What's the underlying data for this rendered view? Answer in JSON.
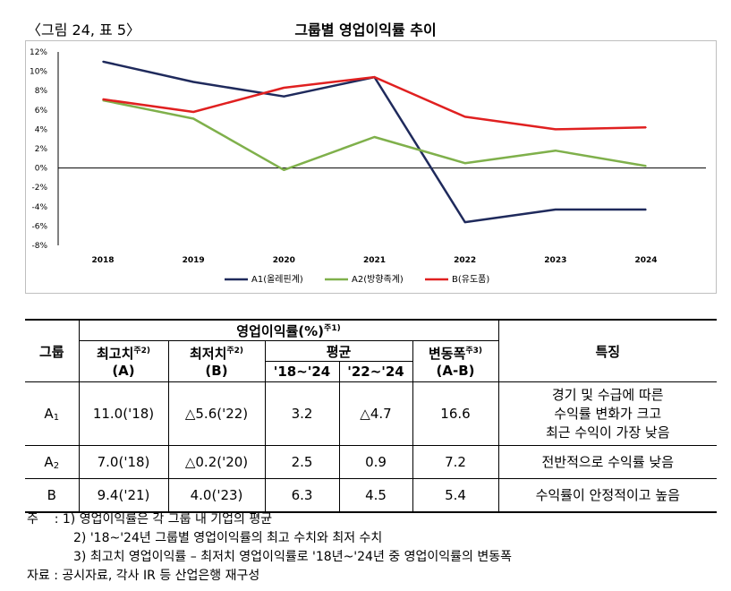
{
  "figure_label": "〈그림 24, 표 5〉",
  "chart_data": {
    "type": "line",
    "title": "그룹별 영업이익률 추이",
    "categories": [
      "2018",
      "2019",
      "2020",
      "2021",
      "2022",
      "2023",
      "2024"
    ],
    "y_ticks": [
      "12%",
      "10%",
      "8%",
      "6%",
      "4%",
      "2%",
      "0%",
      "-2%",
      "-4%",
      "-6%",
      "-8%"
    ],
    "ylim": [
      -8,
      12
    ],
    "grid": false,
    "legend_position": "bottom",
    "series": [
      {
        "name": "A1(올레핀계)",
        "color": "#1f2a5c",
        "values": [
          11.0,
          8.9,
          7.4,
          9.4,
          -5.6,
          -4.3,
          -4.3
        ]
      },
      {
        "name": "A2(방향족계)",
        "color": "#7fb04b",
        "values": [
          7.0,
          5.1,
          -0.2,
          3.2,
          0.5,
          1.8,
          0.2
        ]
      },
      {
        "name": "B(유도품)",
        "color": "#e02020",
        "values": [
          7.1,
          5.8,
          8.3,
          9.4,
          5.3,
          4.0,
          4.2
        ]
      }
    ]
  },
  "table": {
    "header": {
      "group": "그룹",
      "margin_title": "영업이익률(%)",
      "margin_note": "주1)",
      "max_label": "최고치",
      "max_note": "주2)",
      "max_sub": "(A)",
      "min_label": "최저치",
      "min_note": "주2)",
      "min_sub": "(B)",
      "avg_label": "평균",
      "avg_1": "'18~'24",
      "avg_2": "'22~'24",
      "range_label": "변동폭",
      "range_note": "주3)",
      "range_sub": "(A-B)",
      "feature": "특징"
    },
    "rows": [
      {
        "group": "A",
        "group_sub": "1",
        "max": "11.0('18)",
        "min": "△5.6('22)",
        "avg1": "3.2",
        "avg2": "△4.7",
        "range": "16.6",
        "feature_lines": [
          "경기 및 수급에 따른",
          "수익률 변화가 크고",
          "최근 수익이 가장 낮음"
        ]
      },
      {
        "group": "A",
        "group_sub": "2",
        "max": "7.0('18)",
        "min": "△0.2('20)",
        "avg1": "2.5",
        "avg2": "0.9",
        "range": "7.2",
        "feature_lines": [
          "전반적으로 수익률 낮음"
        ]
      },
      {
        "group": "B",
        "group_sub": "",
        "max": "9.4('21)",
        "min": "4.0('23)",
        "avg1": "6.3",
        "avg2": "4.5",
        "range": "5.4",
        "feature_lines": [
          "수익률이 안정적이고 높음"
        ]
      }
    ]
  },
  "notes": {
    "lead": "주",
    "sep": ":",
    "items": [
      "1) 영업이익률은 각 그룹 내 기업의 평균",
      "2) '18~'24년 그룹별 영업이익률의 최고 수치와 최저 수치",
      "3) 최고치 영업이익률 – 최저치 영업이익률로 '18년~'24년 중 영업이익률의 변동폭"
    ],
    "source": "자료 : 공시자료, 각사 IR 등 산업은행 재구성"
  }
}
